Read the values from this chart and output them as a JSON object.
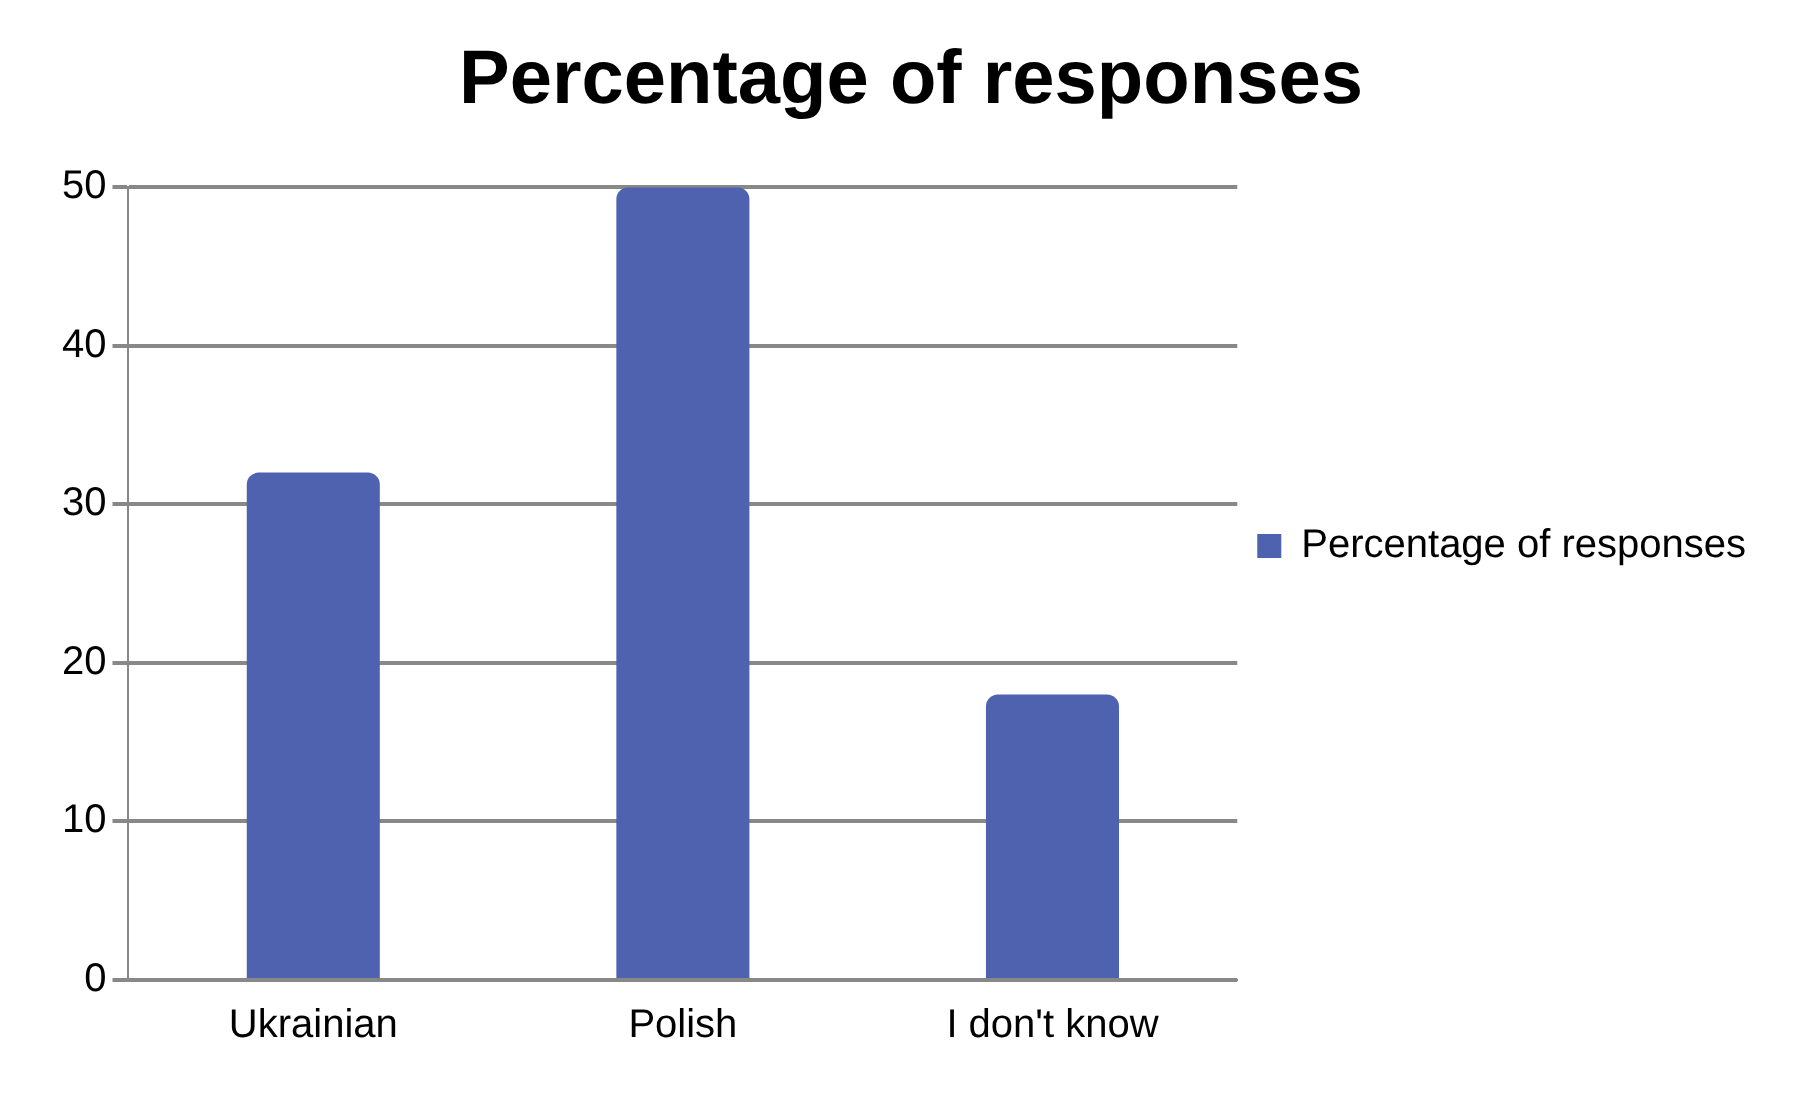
{
  "chart_data": {
    "type": "bar",
    "title": "Percentage of responses",
    "categories": [
      "Ukrainian",
      "Polish",
      "I don't know"
    ],
    "series": [
      {
        "name": "Percentage of responses",
        "color": "#4f62b0",
        "values": [
          32,
          50,
          18
        ]
      }
    ],
    "ylim": [
      0,
      50
    ],
    "yticks": [
      0,
      10,
      20,
      30,
      40,
      50
    ],
    "grid": "y",
    "legend": "right"
  }
}
